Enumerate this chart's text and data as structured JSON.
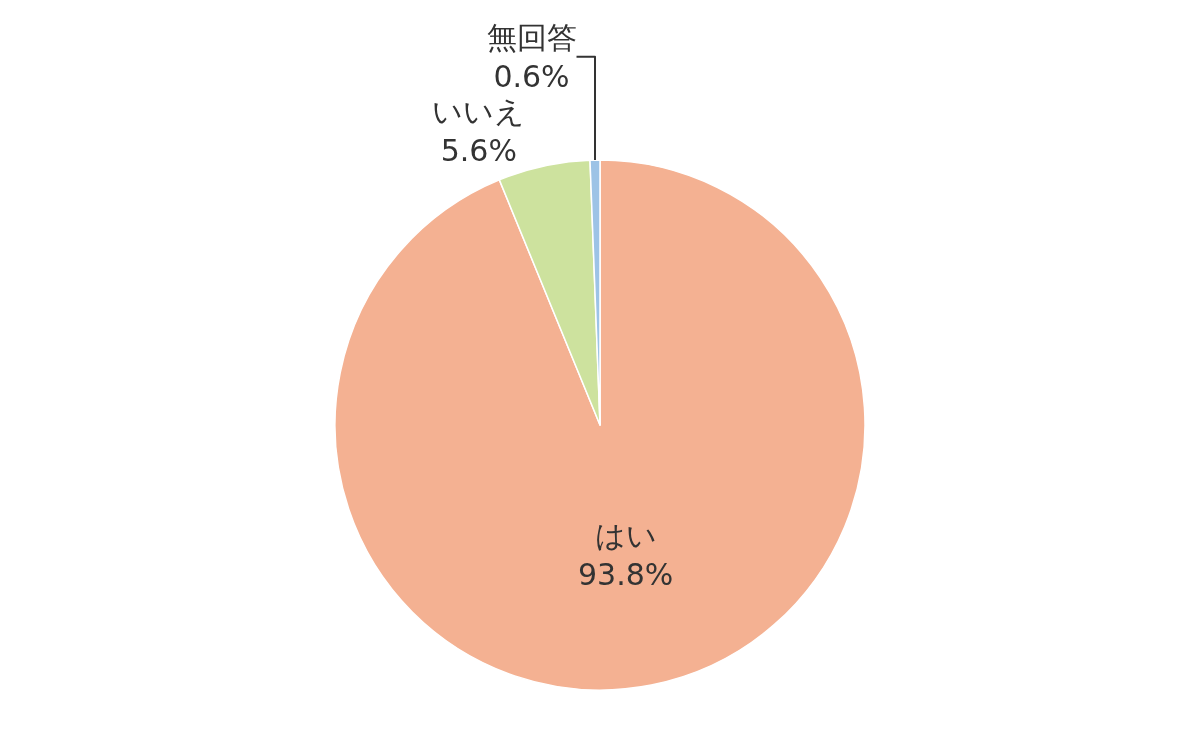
{
  "chart_data": {
    "type": "pie",
    "categories": [
      "はい",
      "いいえ",
      "無回答"
    ],
    "values": [
      93.8,
      5.6,
      0.6
    ],
    "colors": [
      "#f4b192",
      "#cde29e",
      "#9dc3e6"
    ],
    "value_labels": [
      "93.8%",
      "5.6%",
      "0.6%"
    ],
    "legend": false
  }
}
